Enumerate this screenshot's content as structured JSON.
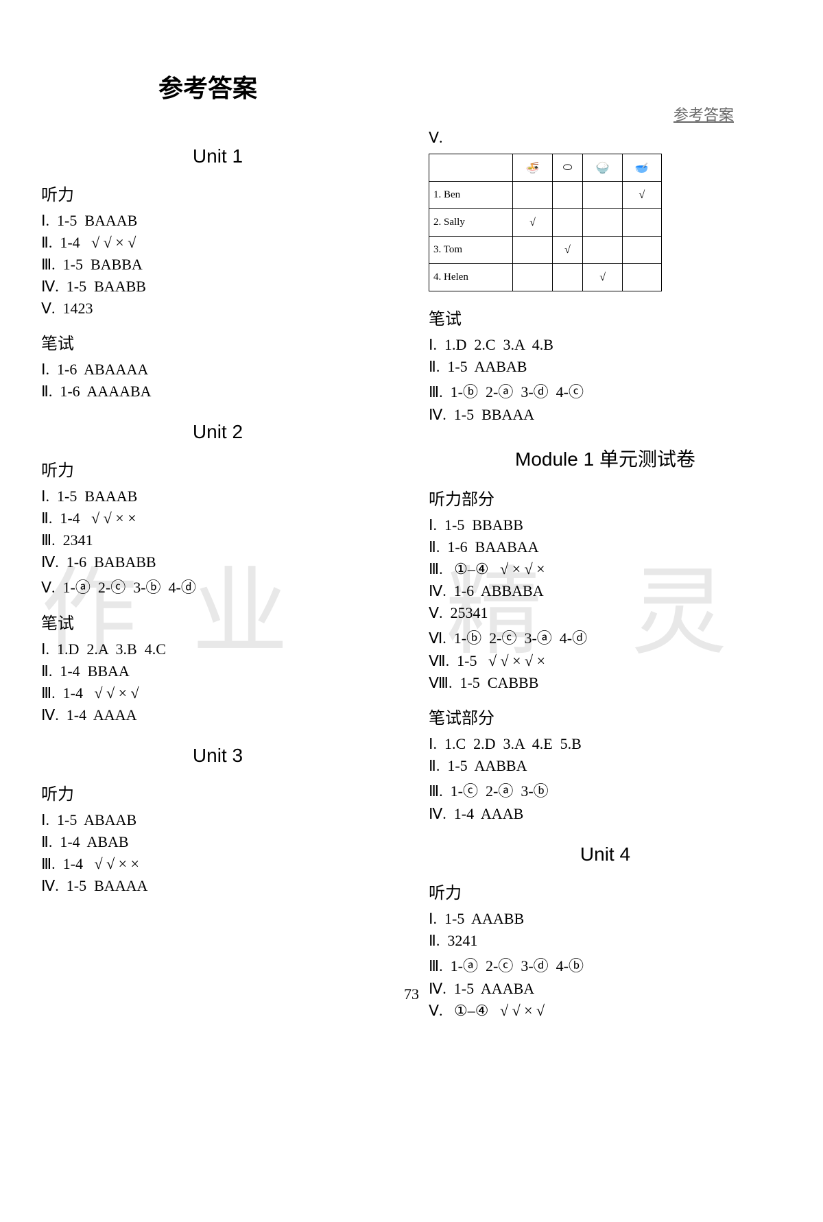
{
  "header_label": "参考答案",
  "main_title": "参考答案",
  "page_number": "73",
  "watermark": {
    "c1": "作",
    "c2": "业",
    "c3": "精",
    "c4": "灵"
  },
  "colors": {
    "background": "#ffffff",
    "text": "#000000",
    "header_text": "#666666",
    "watermark": "#e8e8e8",
    "border": "#000000"
  },
  "fonts": {
    "body": "Times New Roman",
    "chinese": "SimSun",
    "title": "KaiTi",
    "unit": "Arial"
  },
  "left_col": {
    "unit1": {
      "title": "Unit 1",
      "listening_label": "听力",
      "listening": [
        "Ⅰ.  1-5  BAAAB",
        "Ⅱ.  1-4   √ √ × √",
        "Ⅲ.  1-5  BABBA",
        "Ⅳ.  1-5  BAABB",
        "Ⅴ.  1423"
      ],
      "written_label": "笔试",
      "written": [
        "Ⅰ.  1-6  ABAAAA",
        "Ⅱ.  1-6  AAAABA"
      ]
    },
    "unit2": {
      "title": "Unit 2",
      "listening_label": "听力",
      "listening": [
        "Ⅰ.  1-5  BAAAB",
        "Ⅱ.  1-4   √ √ × ×",
        "Ⅲ.  2341",
        "Ⅳ.  1-6  BABABB",
        "Ⅴ.  1-ⓐ  2-ⓒ  3-ⓑ  4-ⓓ"
      ],
      "written_label": "笔试",
      "written": [
        "Ⅰ.  1.D  2.A  3.B  4.C",
        "Ⅱ.  1-4  BBAA",
        "Ⅲ.  1-4   √ √ × √",
        "Ⅳ.  1-4  AAAA"
      ]
    },
    "unit3": {
      "title": "Unit 3",
      "listening_label": "听力",
      "listening": [
        "Ⅰ.  1-5  ABAAB",
        "Ⅱ.  1-4  ABAB",
        "Ⅲ.  1-4   √ √ × ×",
        "Ⅳ.  1-5  BAAAA"
      ]
    }
  },
  "right_col": {
    "section_v": "Ⅴ.",
    "table": {
      "icons": [
        "🍜",
        "⬭",
        "🍚",
        "🥣"
      ],
      "rows": [
        {
          "name": "1. Ben",
          "c1": "",
          "c2": "",
          "c3": "",
          "c4": "√"
        },
        {
          "name": "2. Sally",
          "c1": "√",
          "c2": "",
          "c3": "",
          "c4": ""
        },
        {
          "name": "3. Tom",
          "c1": "",
          "c2": "√",
          "c3": "",
          "c4": ""
        },
        {
          "name": "4. Helen",
          "c1": "",
          "c2": "",
          "c3": "√",
          "c4": ""
        }
      ]
    },
    "written_label_u3": "笔试",
    "written_u3": [
      "Ⅰ.  1.D  2.C  3.A  4.B",
      "Ⅱ.  1-5  AABAB",
      "Ⅲ.  1-ⓑ  2-ⓐ  3-ⓓ  4-ⓒ",
      "Ⅳ.  1-5  BBAAA"
    ],
    "module1": {
      "title": "Module 1 单元测试卷",
      "listening_label": "听力部分",
      "listening": [
        "Ⅰ.  1-5  BBABB",
        "Ⅱ.  1-6  BAABAA",
        "Ⅲ.   ①–④   √ × √ ×",
        "Ⅳ.  1-6  ABBABA",
        "Ⅴ.  25341",
        "Ⅵ.  1-ⓑ  2-ⓒ  3-ⓐ  4-ⓓ",
        "Ⅶ.  1-5   √ √ × √ ×",
        "Ⅷ.  1-5  CABBB"
      ],
      "written_label": "笔试部分",
      "written": [
        "Ⅰ.  1.C  2.D  3.A  4.E  5.B",
        "Ⅱ.  1-5  AABBA",
        "Ⅲ.  1-ⓒ  2-ⓐ  3-ⓑ",
        "Ⅳ.  1-4  AAAB"
      ]
    },
    "unit4": {
      "title": "Unit 4",
      "listening_label": "听力",
      "listening": [
        "Ⅰ.  1-5  AAABB",
        "Ⅱ.  3241",
        "Ⅲ.  1-ⓐ  2-ⓒ  3-ⓓ  4-ⓑ",
        "Ⅳ.  1-5  AAABA",
        "Ⅴ.   ①–④   √ √ × √"
      ]
    }
  }
}
